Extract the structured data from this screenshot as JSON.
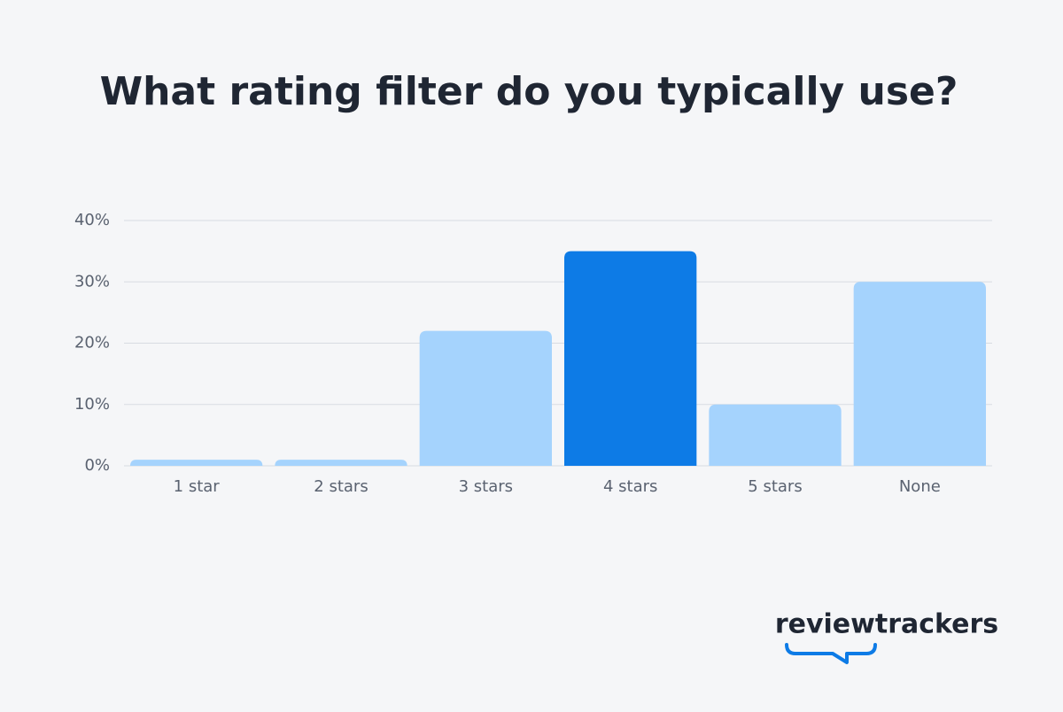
{
  "chart_data": {
    "type": "bar",
    "title": "What rating filter do you typically use?",
    "categories": [
      "1 star",
      "2 stars",
      "3 stars",
      "4 stars",
      "5 stars",
      "None"
    ],
    "values": [
      1,
      1,
      22,
      35,
      10,
      30
    ],
    "colors": [
      "#a5d3fd",
      "#a5d3fd",
      "#a5d3fd",
      "#0d7be6",
      "#a5d3fd",
      "#a5d3fd"
    ],
    "ylim": [
      0,
      40
    ],
    "yticks": [
      {
        "value": 0,
        "label": "0%"
      },
      {
        "value": 10,
        "label": "10%"
      },
      {
        "value": 20,
        "label": "20%"
      },
      {
        "value": 30,
        "label": "30%"
      },
      {
        "value": 40,
        "label": "40%"
      }
    ],
    "grid": true
  },
  "logo": {
    "text": "reviewtrackers"
  }
}
